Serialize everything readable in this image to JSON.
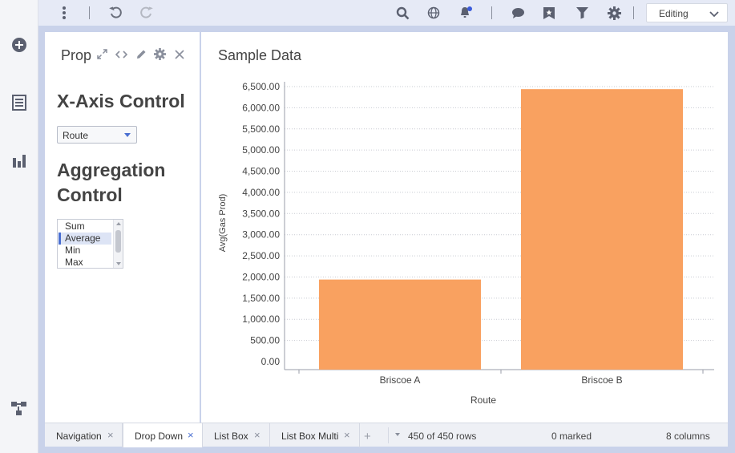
{
  "toolbar": {
    "mode_label": "Editing",
    "icons": [
      "more-vert-icon",
      "undo-icon",
      "redo-icon",
      "search-icon",
      "globe-icon",
      "notifications-icon",
      "comment-icon",
      "bookmark-icon",
      "filter-icon",
      "settings-icon",
      "chevron-down-icon"
    ]
  },
  "rail": {
    "icons": [
      "add-circle-icon",
      "data-table-icon",
      "bar-chart-icon",
      "data-flow-icon"
    ]
  },
  "text_panel": {
    "title": "Properties",
    "xaxis_heading": "X-Axis Control",
    "dropdown_value": "Route",
    "agg_heading": "Aggregation Control",
    "agg_options": [
      {
        "label": "Sum",
        "selected": false
      },
      {
        "label": "Average",
        "selected": true
      },
      {
        "label": "Min",
        "selected": false
      },
      {
        "label": "Max",
        "selected": false
      }
    ]
  },
  "viz": {
    "title": "Sample Data"
  },
  "chart_data": {
    "type": "bar",
    "categories": [
      "Briscoe A",
      "Briscoe B"
    ],
    "values": [
      1940,
      6440
    ],
    "bar_color": "#f9a160",
    "xlabel": "Route",
    "ylabel": "Avg(Gas Prod)",
    "yticks": [
      "0.00",
      "500.00",
      "1,000.00",
      "1,500.00",
      "2,000.00",
      "2,500.00",
      "3,000.00",
      "3,500.00",
      "4,000.00",
      "4,500.00",
      "5,000.00",
      "5,500.00",
      "6,000.00",
      "6,500.00"
    ],
    "ylim": [
      0,
      6500
    ],
    "grid": true
  },
  "tabs": [
    {
      "label": "Navigation",
      "active": false
    },
    {
      "label": "Drop Down",
      "active": true
    },
    {
      "label": "List Box",
      "active": false
    },
    {
      "label": "List Box Multi",
      "active": false
    }
  ],
  "status": {
    "rows": "450 of 450 rows",
    "marked": "0 marked",
    "columns": "8 columns"
  },
  "colors": {
    "accent": "#4a6fd1",
    "bar": "#f9a160",
    "frame": "#c9d2ea"
  }
}
